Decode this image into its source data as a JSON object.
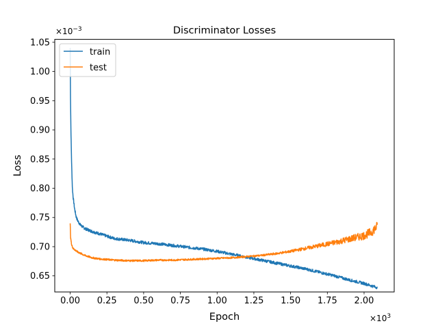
{
  "chart_data": {
    "type": "line",
    "title": "Discriminator Losses",
    "xlabel": "Epoch",
    "ylabel": "Loss",
    "x_offset_text": {
      "base": "×10",
      "exp": "3"
    },
    "y_offset_text": {
      "base": "×10",
      "exp": "−3"
    },
    "xlim": [
      -0.105,
      2.205
    ],
    "ylim": [
      0.6225,
      1.055
    ],
    "x_ticks": [
      0.0,
      0.25,
      0.5,
      0.75,
      1.0,
      1.25,
      1.5,
      1.75,
      2.0
    ],
    "x_tick_labels": [
      "0.00",
      "0.25",
      "0.50",
      "0.75",
      "1.00",
      "1.25",
      "1.50",
      "1.75",
      "2.00"
    ],
    "y_ticks": [
      0.65,
      0.7,
      0.75,
      0.8,
      0.85,
      0.9,
      0.95,
      1.0,
      1.05
    ],
    "y_tick_labels": [
      "0.65",
      "0.70",
      "0.75",
      "0.80",
      "0.85",
      "0.90",
      "0.95",
      "1.00",
      "1.05"
    ],
    "grid": false,
    "legend_position": "upper-left",
    "noise_seed": 7,
    "series": [
      {
        "name": "train",
        "color": "#1f77b4",
        "noise": 0.0025,
        "points": [
          [
            0.0,
            1.04
          ],
          [
            0.002,
            0.96
          ],
          [
            0.005,
            0.9
          ],
          [
            0.01,
            0.84
          ],
          [
            0.015,
            0.8
          ],
          [
            0.02,
            0.785
          ],
          [
            0.03,
            0.765
          ],
          [
            0.04,
            0.752
          ],
          [
            0.05,
            0.745
          ],
          [
            0.07,
            0.737
          ],
          [
            0.1,
            0.731
          ],
          [
            0.15,
            0.726
          ],
          [
            0.2,
            0.722
          ],
          [
            0.25,
            0.718
          ],
          [
            0.3,
            0.714
          ],
          [
            0.4,
            0.711
          ],
          [
            0.5,
            0.707
          ],
          [
            0.6,
            0.705
          ],
          [
            0.7,
            0.702
          ],
          [
            0.8,
            0.699
          ],
          [
            0.9,
            0.696
          ],
          [
            1.0,
            0.692
          ],
          [
            1.1,
            0.687
          ],
          [
            1.2,
            0.682
          ],
          [
            1.3,
            0.677
          ],
          [
            1.4,
            0.672
          ],
          [
            1.5,
            0.667
          ],
          [
            1.6,
            0.662
          ],
          [
            1.7,
            0.656
          ],
          [
            1.8,
            0.65
          ],
          [
            1.9,
            0.643
          ],
          [
            2.0,
            0.637
          ],
          [
            2.05,
            0.633
          ],
          [
            2.09,
            0.63
          ]
        ]
      },
      {
        "name": "test",
        "color": "#ff7f0e",
        "noise": 0.0015,
        "noise_growth": 0.007,
        "points": [
          [
            0.0,
            0.74
          ],
          [
            0.003,
            0.715
          ],
          [
            0.01,
            0.703
          ],
          [
            0.02,
            0.697
          ],
          [
            0.05,
            0.691
          ],
          [
            0.1,
            0.685
          ],
          [
            0.15,
            0.681
          ],
          [
            0.2,
            0.679
          ],
          [
            0.3,
            0.677
          ],
          [
            0.4,
            0.676
          ],
          [
            0.5,
            0.676
          ],
          [
            0.6,
            0.677
          ],
          [
            0.7,
            0.677
          ],
          [
            0.8,
            0.678
          ],
          [
            0.9,
            0.679
          ],
          [
            1.0,
            0.68
          ],
          [
            1.1,
            0.681
          ],
          [
            1.2,
            0.683
          ],
          [
            1.3,
            0.685
          ],
          [
            1.4,
            0.688
          ],
          [
            1.5,
            0.692
          ],
          [
            1.6,
            0.697
          ],
          [
            1.7,
            0.702
          ],
          [
            1.8,
            0.707
          ],
          [
            1.9,
            0.713
          ],
          [
            2.0,
            0.719
          ],
          [
            2.05,
            0.725
          ],
          [
            2.09,
            0.735
          ]
        ]
      }
    ]
  }
}
